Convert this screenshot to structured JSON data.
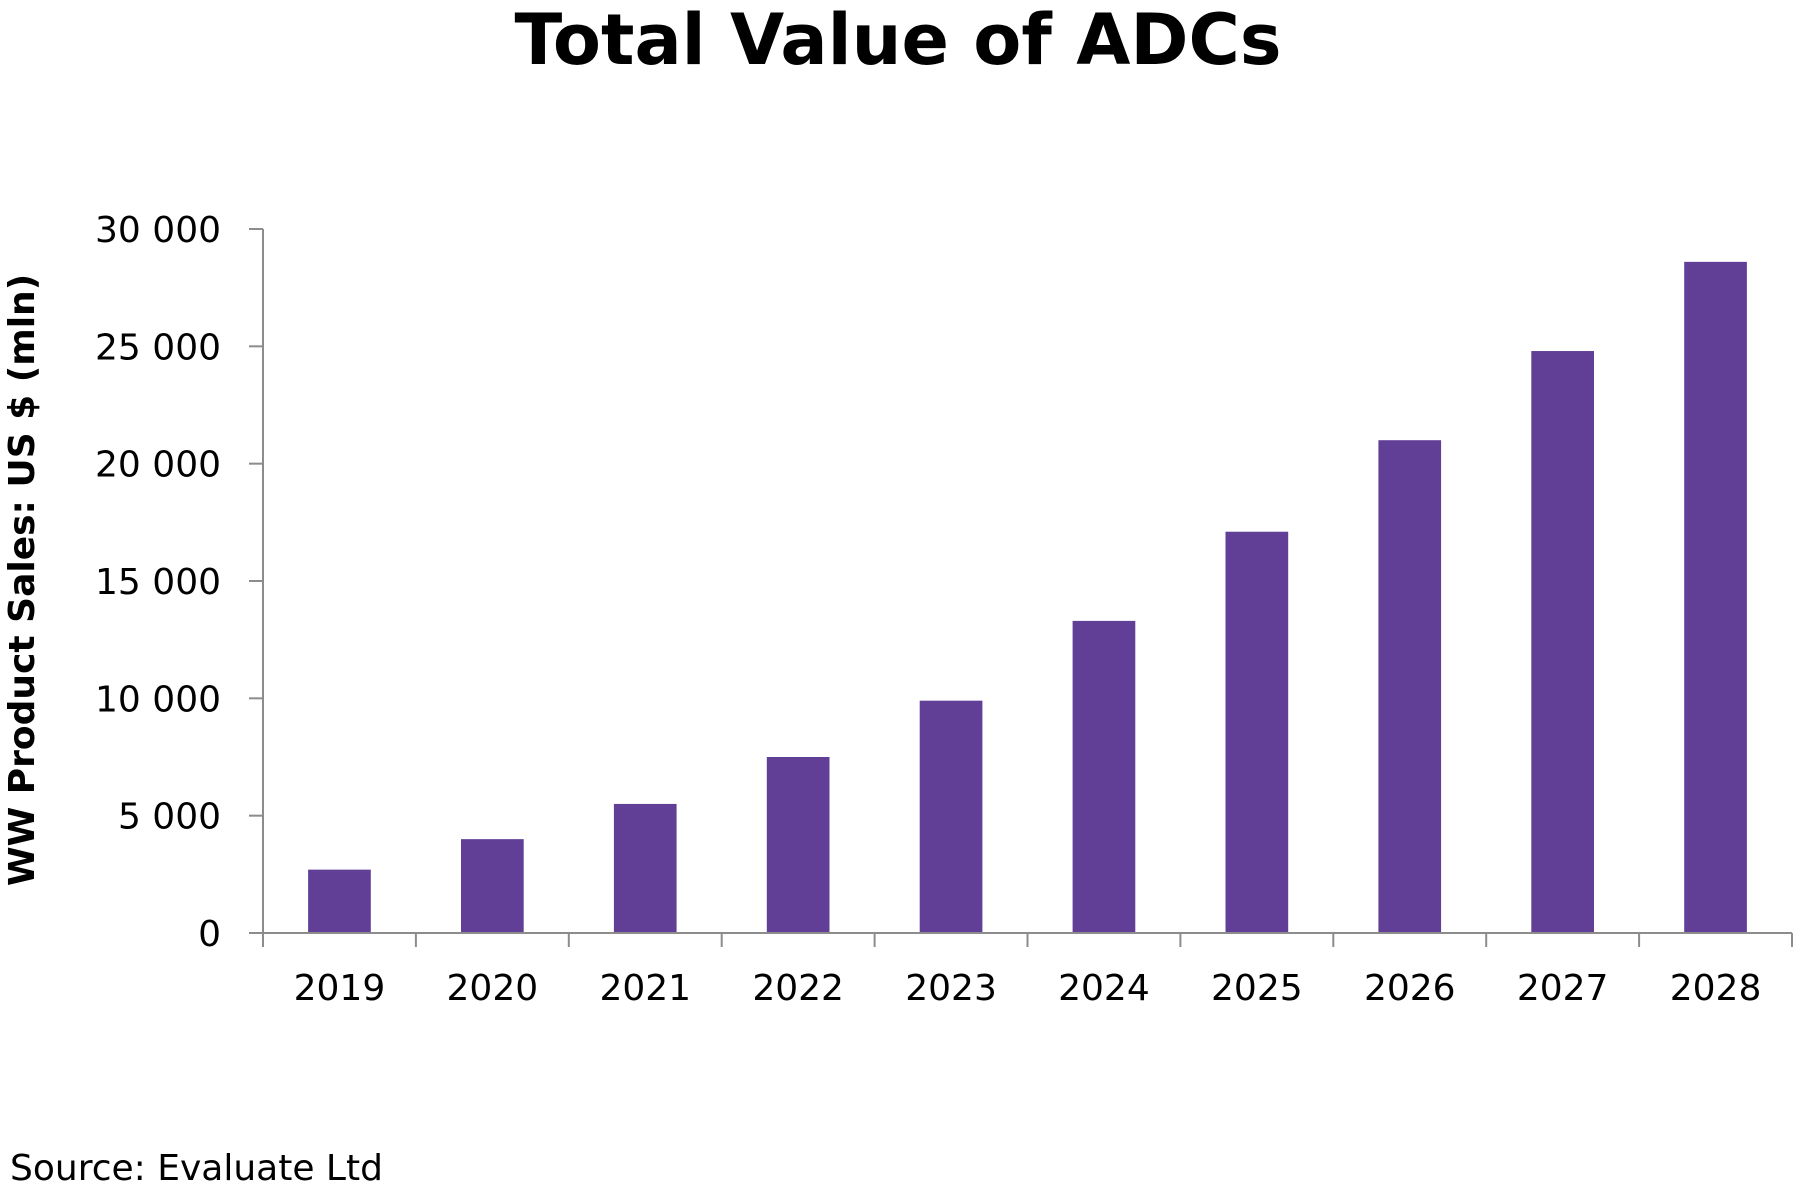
{
  "chart_data": {
    "type": "bar",
    "title": "Total Value of ADCs",
    "xlabel": "",
    "ylabel": "WW Product Sales: US $ (mln)",
    "categories": [
      "2019",
      "2020",
      "2021",
      "2022",
      "2023",
      "2024",
      "2025",
      "2026",
      "2027",
      "2028"
    ],
    "values": [
      2700,
      4000,
      5500,
      7500,
      9900,
      13300,
      17100,
      21000,
      24800,
      28600
    ],
    "ylim": [
      0,
      30000
    ],
    "yticks": [
      0,
      5000,
      10000,
      15000,
      20000,
      25000,
      30000
    ],
    "ytick_labels": [
      "0",
      "5 000",
      "10 000",
      "15 000",
      "20 000",
      "25 000",
      "30 000"
    ],
    "grid": false,
    "legend": "none",
    "bar_color": "#623f97",
    "axis_color": "#8c8c8c"
  },
  "source": "Source: Evaluate Ltd"
}
